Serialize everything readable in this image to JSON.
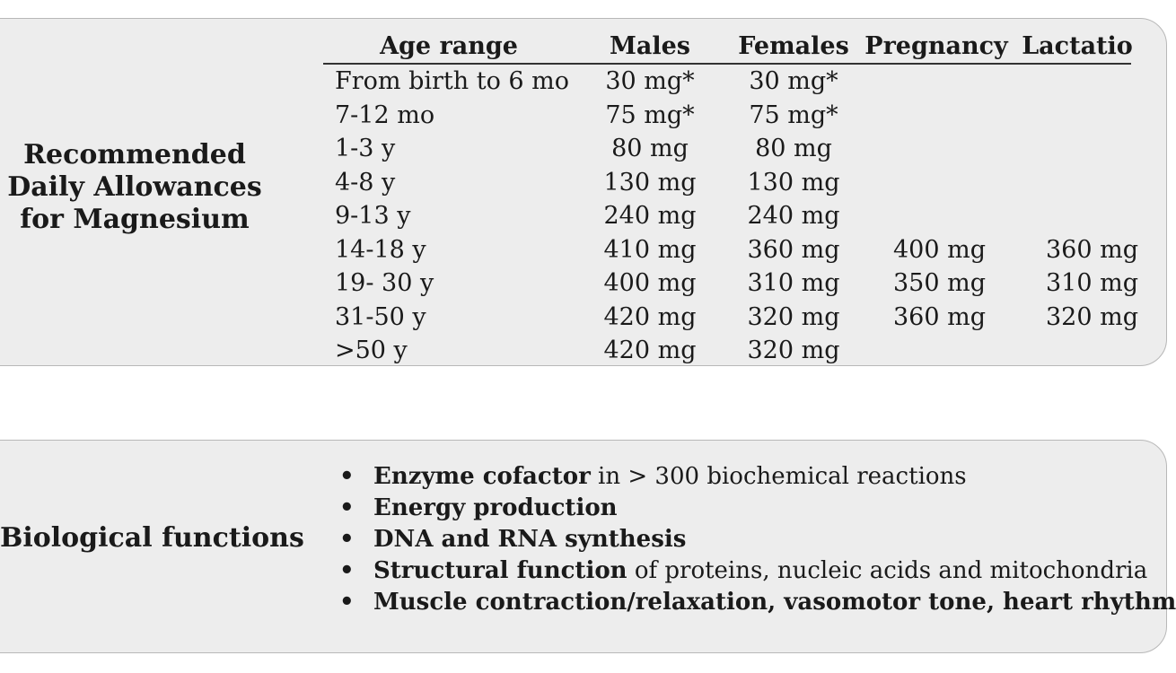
{
  "rda": {
    "title_lines": [
      "Recommended",
      "Daily Allowances",
      "for Magnesium"
    ],
    "headers": [
      "Age range",
      "Males",
      "Females",
      "Pregnancy",
      "Lactatio"
    ],
    "rows": [
      [
        "From birth to 6 mo",
        "30 mg*",
        "30 mg*",
        "",
        ""
      ],
      [
        "7-12 mo",
        "75 mg*",
        "75 mg*",
        "",
        ""
      ],
      [
        "1-3 y",
        "80 mg",
        "80 mg",
        "",
        ""
      ],
      [
        "4-8 y",
        "130 mg",
        "130 mg",
        "",
        ""
      ],
      [
        "9-13 y",
        "240 mg",
        "240 mg",
        "",
        ""
      ],
      [
        "14-18 y",
        "410 mg",
        "360 mg",
        "400 mg",
        "360 mg"
      ],
      [
        "19- 30 y",
        "400 mg",
        "310 mg",
        "350 mg",
        "310 mg"
      ],
      [
        "31-50 y",
        "420 mg",
        "320 mg",
        "360 mg",
        "320 mg"
      ],
      [
        ">50 y",
        "420 mg",
        "320 mg",
        "",
        ""
      ]
    ]
  },
  "bio": {
    "title": "Biological functions",
    "bullet": "•",
    "items": [
      {
        "bold": "Enzyme cofactor",
        "rest": " in > 300 biochemical reactions"
      },
      {
        "bold": "Energy production",
        "rest": ""
      },
      {
        "bold": "DNA and RNA synthesis",
        "rest": ""
      },
      {
        "bold": "Structural function",
        "rest": " of proteins, nucleic acids and mitochondria"
      },
      {
        "bold": "Muscle contraction/relaxation, vasomotor tone, heart rhythm",
        "rest": ""
      }
    ]
  }
}
